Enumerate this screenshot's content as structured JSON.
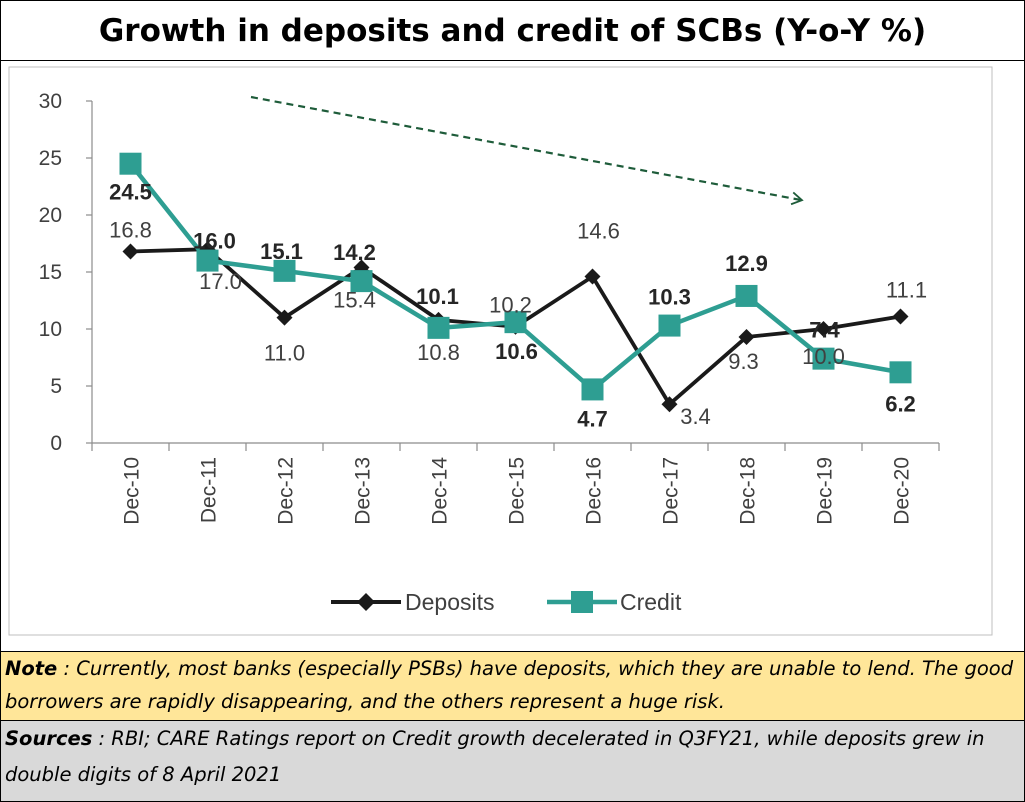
{
  "title": "Growth in deposits and credit of SCBs (Y-o-Y %)",
  "chart_data": {
    "type": "line",
    "categories": [
      "Dec-10",
      "Dec-11",
      "Dec-12",
      "Dec-13",
      "Dec-14",
      "Dec-15",
      "Dec-16",
      "Dec-17",
      "Dec-18",
      "Dec-19",
      "Dec-20"
    ],
    "ylim": [
      0,
      30
    ],
    "yticks": [
      "0",
      "5",
      "10",
      "15",
      "20",
      "25",
      "30"
    ],
    "grid": false,
    "legend_position": "bottom",
    "series": [
      {
        "name": "Deposits",
        "color": "#1A1A1A",
        "marker": "diamond",
        "values": [
          16.8,
          17.0,
          11.0,
          15.4,
          10.8,
          10.2,
          14.6,
          3.4,
          9.3,
          10.0,
          11.1
        ],
        "labels": [
          "16.8",
          "17.0",
          "11.0",
          "15.4",
          "10.8",
          "10.2",
          "14.6",
          "3.4",
          "9.3",
          "10.0",
          "11.1"
        ]
      },
      {
        "name": "Credit",
        "color": "#2E9E92",
        "marker": "square",
        "values": [
          24.5,
          16.0,
          15.1,
          14.2,
          10.1,
          10.6,
          4.7,
          10.3,
          12.9,
          7.4,
          6.2
        ],
        "labels": [
          "24.5",
          "16.0",
          "15.1",
          "14.2",
          "10.1",
          "10.6",
          "4.7",
          "10.3",
          "12.9",
          "7.4",
          "6.2"
        ]
      }
    ],
    "trend_arrow_color": "#1E5C3A"
  },
  "note": {
    "label": "Note",
    "text": " : Currently, most banks (especially PSBs) have deposits, which they are unable to lend.  The good borrowers are rapidly disappearing, and the others represent a huge risk."
  },
  "sources": {
    "label": "Sources",
    "text": " : RBI; CARE Ratings report on Credit growth decelerated in Q3FY21, while deposits grew in double digits of 8 April 2021"
  }
}
